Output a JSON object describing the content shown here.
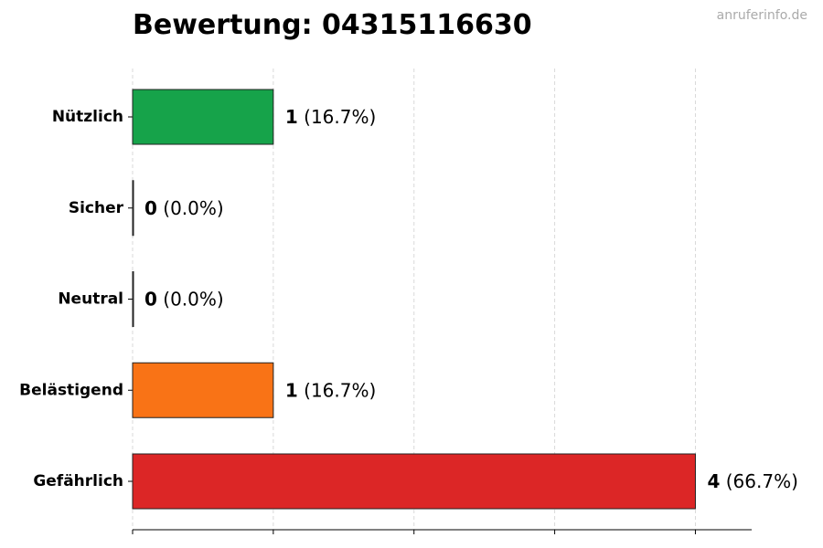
{
  "title": "Bewertung: 04315116630",
  "watermark": "anruferinfo.de",
  "chart_data": {
    "type": "bar",
    "orientation": "horizontal",
    "title": "Bewertung: 04315116630",
    "xlabel": "",
    "ylabel": "",
    "xlim": [
      0,
      4.4
    ],
    "grid": true,
    "categories": [
      "Nützlich",
      "Sicher",
      "Neutral",
      "Belästigend",
      "Gefährlich"
    ],
    "values": [
      1,
      0,
      0,
      1,
      4
    ],
    "percent_labels": [
      "(16.7%)",
      "(0.0%)",
      "(0.0%)",
      "(16.7%)",
      "(66.7%)"
    ],
    "colors": [
      "#16a34a",
      "#22c55e",
      "#9ca3af",
      "#f97316",
      "#dc2626"
    ]
  }
}
